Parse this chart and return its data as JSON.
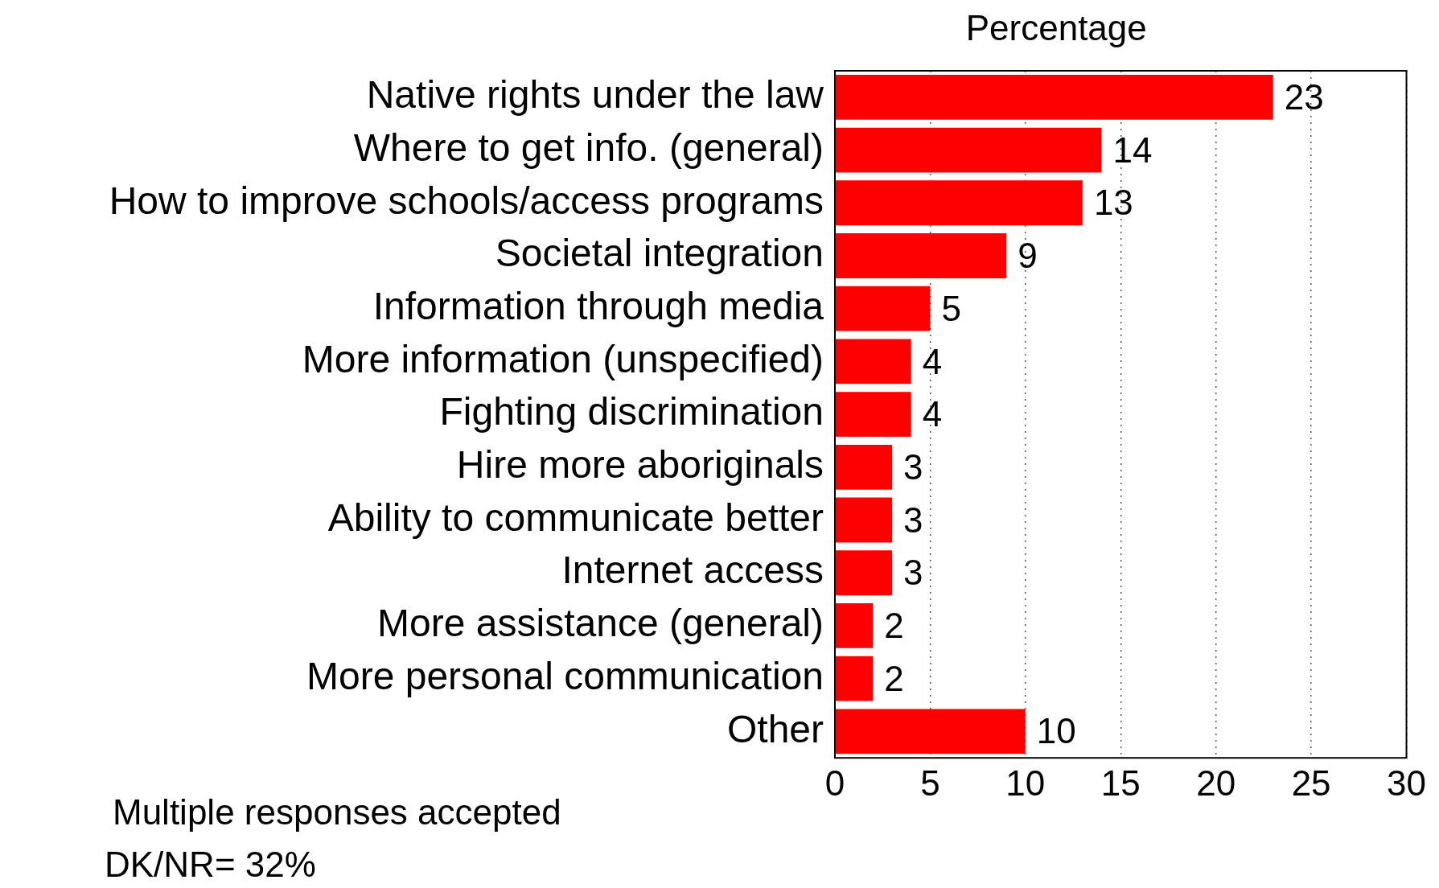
{
  "chart_data": {
    "type": "bar",
    "orientation": "horizontal",
    "title": "Percentage",
    "categories": [
      "Native rights under the law",
      "Where to get info. (general)",
      "How to improve schools/access programs",
      "Societal integration",
      "Information through media",
      "More information (unspecified)",
      "Fighting discrimination",
      "Hire more aboriginals",
      "Ability to communicate better",
      "Internet access",
      "More assistance (general)",
      "More personal communication",
      "Other"
    ],
    "values": [
      23,
      14,
      13,
      9,
      5,
      4,
      4,
      3,
      3,
      3,
      2,
      2,
      10
    ],
    "color": "#ff0000",
    "xlim": [
      0,
      30
    ],
    "xticks": [
      0,
      5,
      10,
      15,
      20,
      25,
      30
    ],
    "grid": "x",
    "data_labels": true,
    "annotations": [
      "Multiple responses accepted",
      "DK/NR= 32%"
    ]
  }
}
